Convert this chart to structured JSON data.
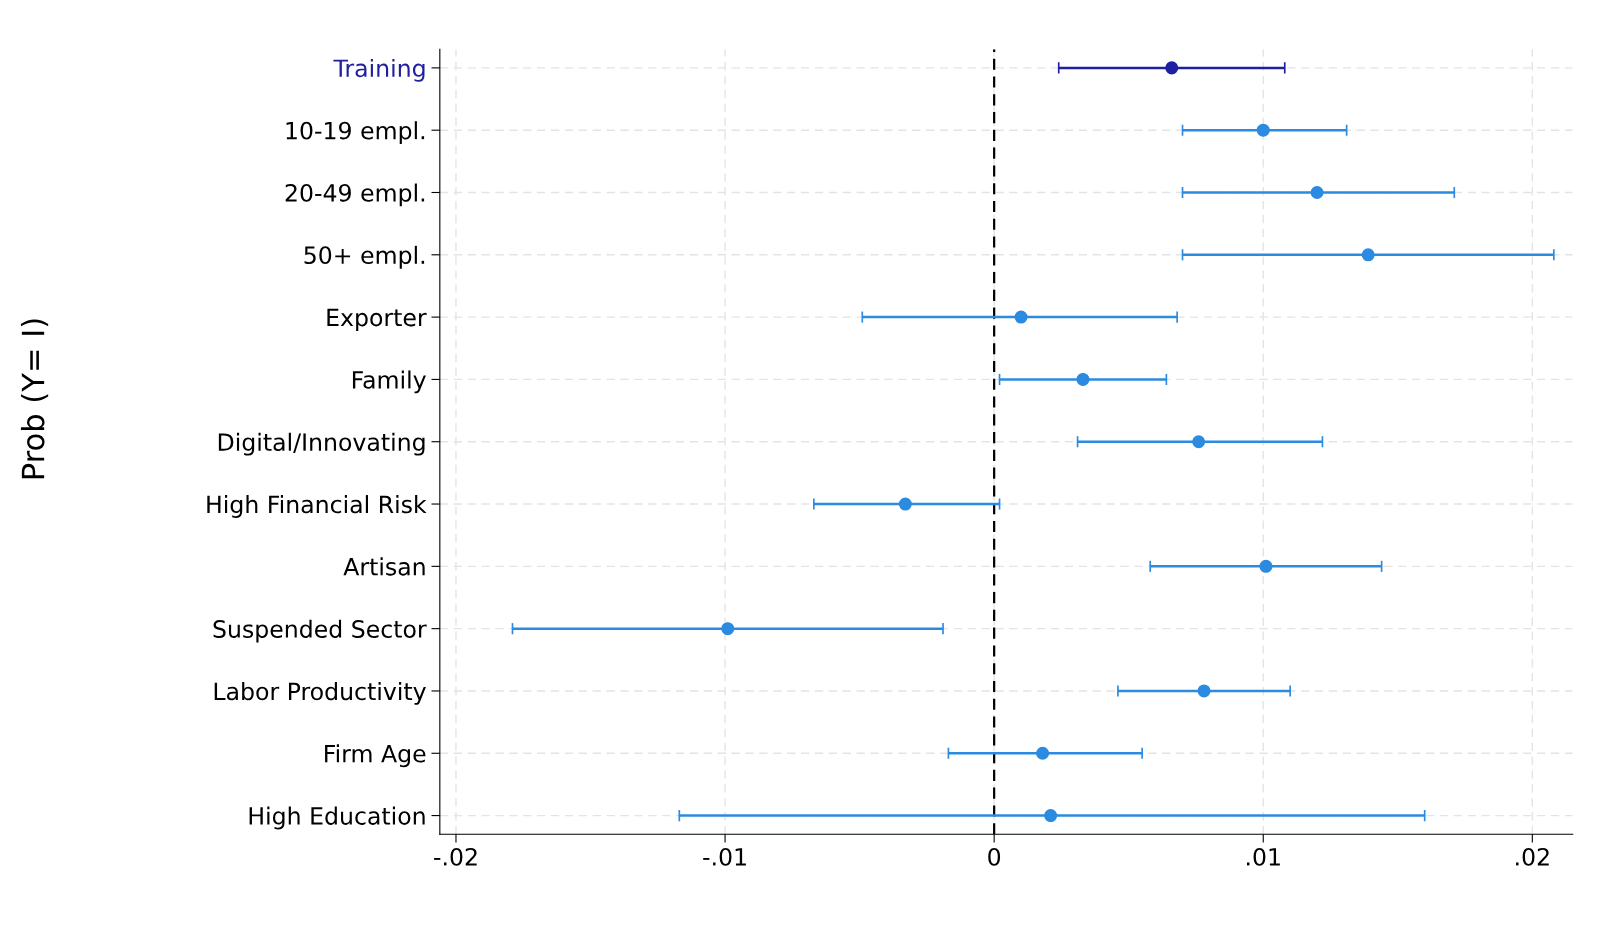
{
  "chart_data": {
    "type": "scatter",
    "orientation": "horizontal",
    "annotations": [
      "Prob (Y= I)"
    ],
    "categories": [
      "Training",
      "10-19 empl.",
      "20-49 empl.",
      "50+ empl.",
      "Exporter",
      "Family",
      "Digital/Innovating",
      "High Financial Risk",
      "Artisan",
      "Suspended Sector",
      "Labor Productivity",
      "Firm Age",
      "High Education"
    ],
    "values": [
      0.0066,
      0.01,
      0.012,
      0.0139,
      0.001,
      0.0033,
      0.0076,
      -0.0033,
      0.0101,
      -0.0099,
      0.0078,
      0.0018,
      0.0021
    ],
    "errors": [
      [
        0.0024,
        0.0108
      ],
      [
        0.007,
        0.0131
      ],
      [
        0.007,
        0.0171
      ],
      [
        0.007,
        0.0208
      ],
      [
        -0.0049,
        0.0068
      ],
      [
        0.0002,
        0.0064
      ],
      [
        0.0031,
        0.0122
      ],
      [
        -0.0067,
        0.0002
      ],
      [
        0.0058,
        0.0144
      ],
      [
        -0.0179,
        -0.0019
      ],
      [
        0.0046,
        0.011
      ],
      [
        -0.0017,
        0.0055
      ],
      [
        -0.0117,
        0.016
      ]
    ],
    "colors": [
      "#1f1fa0",
      "#2b8be0",
      "#2b8be0",
      "#2b8be0",
      "#2b8be0",
      "#2b8be0",
      "#2b8be0",
      "#2b8be0",
      "#2b8be0",
      "#2b8be0",
      "#2b8be0",
      "#2b8be0",
      "#2b8be0"
    ],
    "xlim": [
      -0.0206,
      0.0215
    ],
    "xticks": [
      {
        "value": -0.02,
        "label": "-.02"
      },
      {
        "value": -0.01,
        "label": "-.01"
      },
      0,
      {
        "value": 0.01,
        "label": ".01"
      },
      {
        "value": 0.02,
        "label": ".02"
      }
    ],
    "ref_lines": [
      {
        "axis": "x",
        "value": 0,
        "line_style": "dashed",
        "color": "#000000"
      }
    ],
    "grid": true,
    "marker": "circle"
  }
}
